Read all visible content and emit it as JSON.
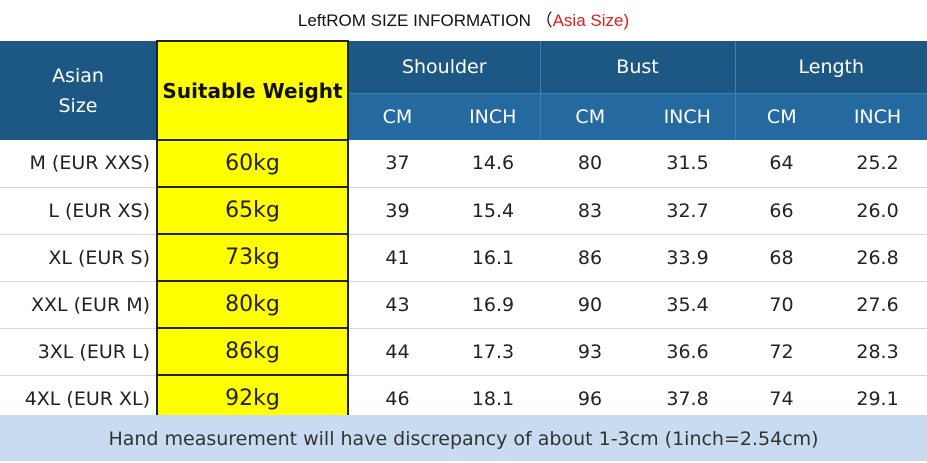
{
  "header": {
    "title": "LeftROM SIZE INFORMATION （",
    "title_highlight": "Asia Size)"
  },
  "table": {
    "size_header": "Asian Size",
    "weight_header": "Suitable Weight",
    "groups": [
      "Shoulder",
      "Bust",
      "Length"
    ],
    "units": [
      "CM",
      "INCH",
      "CM",
      "INCH",
      "CM",
      "INCH"
    ],
    "rows": [
      [
        "M (EUR XXS)",
        "60kg",
        "37",
        "14.6",
        "80",
        "31.5",
        "64",
        "25.2"
      ],
      [
        "L (EUR XS)",
        "65kg",
        "39",
        "15.4",
        "83",
        "32.7",
        "66",
        "26.0"
      ],
      [
        "XL (EUR S)",
        "73kg",
        "41",
        "16.1",
        "86",
        "33.9",
        "68",
        "26.8"
      ],
      [
        "XXL (EUR M)",
        "80kg",
        "43",
        "16.9",
        "90",
        "35.4",
        "70",
        "27.6"
      ],
      [
        "3XL (EUR L)",
        "86kg",
        "44",
        "17.3",
        "93",
        "36.6",
        "72",
        "28.3"
      ],
      [
        "4XL (EUR XL)",
        "92kg",
        "46",
        "18.1",
        "96",
        "37.8",
        "74",
        "29.1"
      ]
    ]
  },
  "footer": {
    "note": "Hand measurement will have discrepancy of about 1-3cm (1inch=2.54cm)"
  }
}
